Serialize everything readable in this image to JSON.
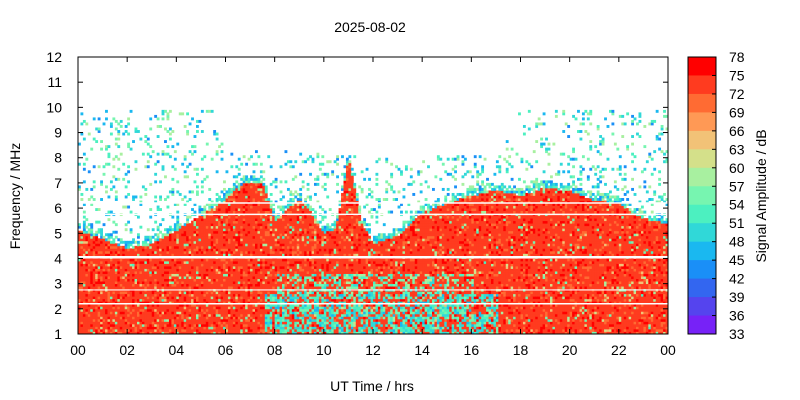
{
  "chart_data": {
    "type": "heatmap",
    "title": "2025-08-02",
    "xlabel": "UT Time / hrs",
    "ylabel": "Frequency / MHz",
    "colorbar_label": "Signal Amplitude / dB",
    "x_tick_labels": [
      "00",
      "02",
      "04",
      "06",
      "08",
      "10",
      "12",
      "14",
      "16",
      "18",
      "20",
      "22",
      "00"
    ],
    "y_tick_labels": [
      "1",
      "2",
      "3",
      "4",
      "5",
      "6",
      "7",
      "8",
      "9",
      "10",
      "11",
      "12"
    ],
    "colorbar_tick_labels": [
      "78",
      "75",
      "72",
      "69",
      "66",
      "63",
      "60",
      "57",
      "54",
      "51",
      "48",
      "45",
      "42",
      "39",
      "36",
      "33"
    ],
    "xlim": [
      0,
      24
    ],
    "ylim": [
      1,
      12
    ],
    "zlim": [
      33,
      78
    ],
    "colors": [
      "#ff0000",
      "#ff3b1f",
      "#ff6b33",
      "#ff9955",
      "#f2c277",
      "#d4e08a",
      "#a8f0a0",
      "#77f5b0",
      "#4cf0c0",
      "#30d8d8",
      "#1ab8f0",
      "#1a8ff7",
      "#3366f0",
      "#5544ee",
      "#7722f7",
      "#8800ff"
    ],
    "strong_echo_top_mhz": [
      [
        0,
        5.1
      ],
      [
        1,
        4.8
      ],
      [
        2,
        4.4
      ],
      [
        3,
        4.6
      ],
      [
        4,
        5.1
      ],
      [
        5,
        5.7
      ],
      [
        6,
        6.3
      ],
      [
        6.5,
        6.9
      ],
      [
        7,
        7.0
      ],
      [
        7.5,
        7.0
      ],
      [
        8,
        5.5
      ],
      [
        8.5,
        6.0
      ],
      [
        9,
        6.3
      ],
      [
        9.5,
        5.8
      ],
      [
        10,
        5.0
      ],
      [
        10.5,
        5.2
      ],
      [
        11,
        8.0
      ],
      [
        11.5,
        5.5
      ],
      [
        12,
        4.6
      ],
      [
        13,
        4.9
      ],
      [
        14,
        5.8
      ],
      [
        15,
        6.2
      ],
      [
        16,
        6.5
      ],
      [
        17,
        6.7
      ],
      [
        18,
        6.5
      ],
      [
        19,
        6.8
      ],
      [
        20,
        6.7
      ],
      [
        21,
        6.3
      ],
      [
        22,
        6.2
      ],
      [
        23,
        5.6
      ],
      [
        24,
        5.4
      ]
    ],
    "scatter_ceiling_mhz": [
      [
        0,
        9.9
      ],
      [
        5.5,
        9.9
      ],
      [
        6,
        8.3
      ],
      [
        9,
        8.3
      ],
      [
        10,
        8.2
      ],
      [
        12,
        8.0
      ],
      [
        17,
        8.1
      ],
      [
        18,
        9.9
      ],
      [
        24,
        9.9
      ]
    ]
  }
}
